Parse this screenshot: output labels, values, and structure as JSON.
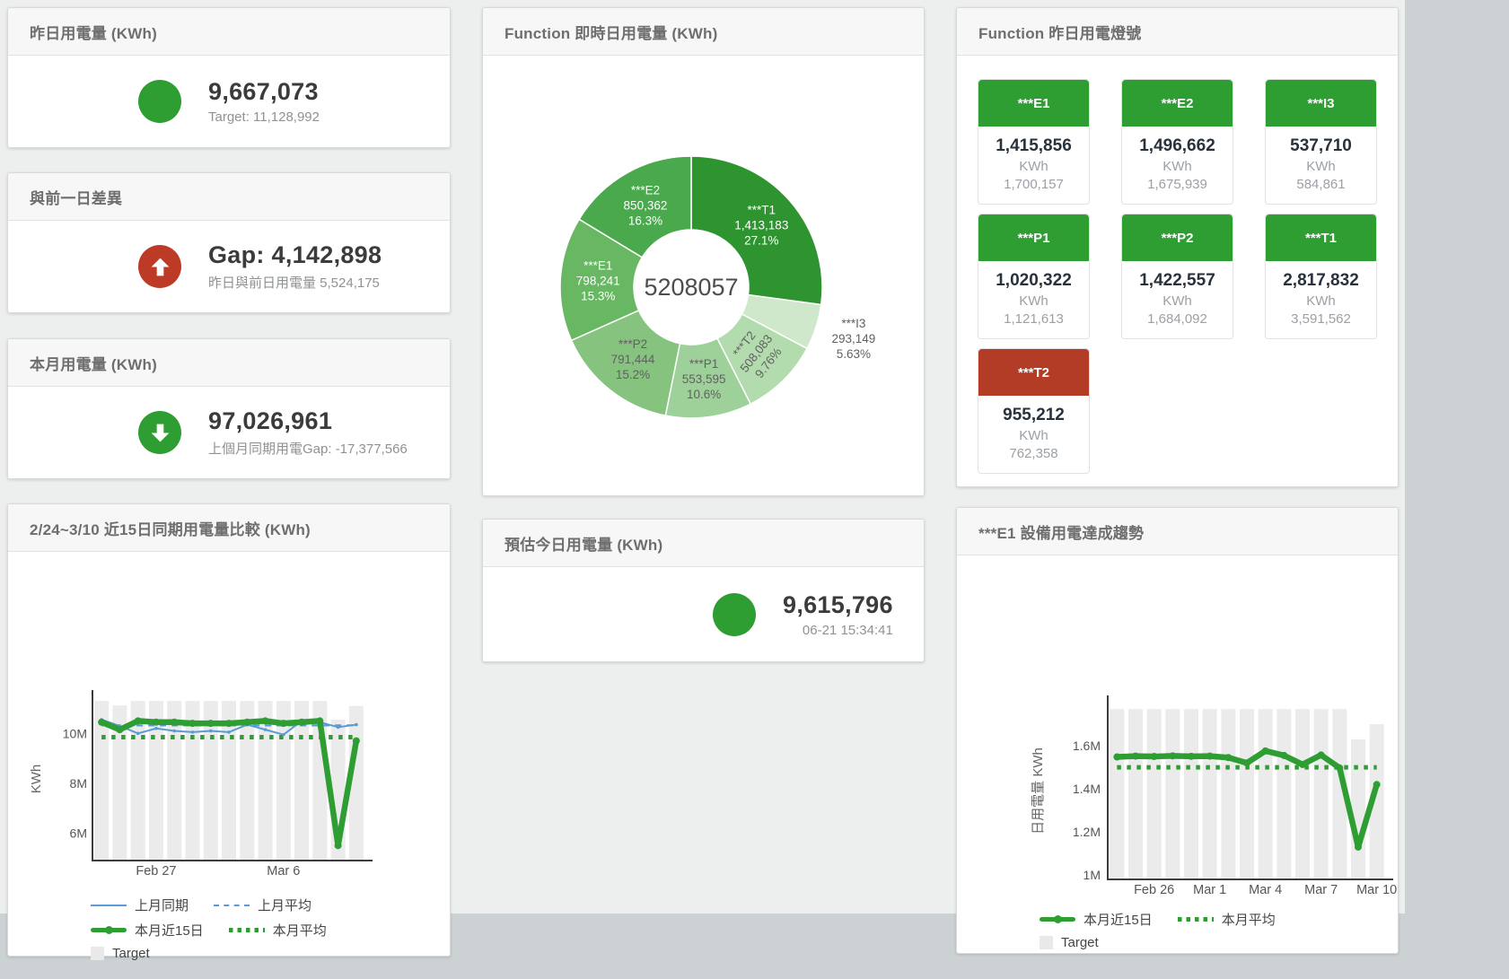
{
  "panels": {
    "yesterday": {
      "title": "昨日用電量 (KWh)",
      "value": "9,667,073",
      "subtitle": "Target: 11,128,992",
      "status_color": "#2e9d32",
      "arrow": "none"
    },
    "day_gap": {
      "title": "與前一日差異",
      "value": "Gap: 4,142,898",
      "subtitle": "昨日與前日用電量 5,524,175",
      "status_color": "#bd3b26",
      "arrow": "up"
    },
    "month": {
      "title": "本月用電量 (KWh)",
      "value": "97,026,961",
      "subtitle": "上個月同期用電Gap: -17,377,566",
      "status_color": "#2e9d32",
      "arrow": "down"
    },
    "realtime": {
      "title": "Function 即時日用電量 (KWh)"
    },
    "estimate": {
      "title": "預估今日用電量 (KWh)",
      "value": "9,615,796",
      "subtitle": "06-21 15:34:41",
      "status_color": "#2e9d32"
    },
    "lights": {
      "title": "Function 昨日用電燈號",
      "unit": "KWh",
      "tiles": [
        {
          "name": "***E1",
          "value": "1,415,856",
          "prev": "1,700,157",
          "header_color": "#2e9d32"
        },
        {
          "name": "***E2",
          "value": "1,496,662",
          "prev": "1,675,939",
          "header_color": "#2e9d32"
        },
        {
          "name": "***I3",
          "value": "537,710",
          "prev": "584,861",
          "header_color": "#2e9d32"
        },
        {
          "name": "***P1",
          "value": "1,020,322",
          "prev": "1,121,613",
          "header_color": "#2e9d32"
        },
        {
          "name": "***P2",
          "value": "1,422,557",
          "prev": "1,684,092",
          "header_color": "#2e9d32"
        },
        {
          "name": "***T1",
          "value": "2,817,832",
          "prev": "3,591,562",
          "header_color": "#2e9d32"
        },
        {
          "name": "***T2",
          "value": "955,212",
          "prev": "762,358",
          "header_color": "#b23c26"
        }
      ]
    },
    "compare": {
      "title": "2/24~3/10 近15日同期用電量比較 (KWh)"
    },
    "trend": {
      "title": "***E1 設備用電達成趨勢"
    }
  },
  "chart_data": [
    {
      "type": "pie",
      "title": "Function 即時日用電量 (KWh)",
      "center_total": "5208057",
      "slices": [
        {
          "name": "***T1",
          "value": 1413183,
          "pct": "27.1%",
          "color": "#2e9430",
          "label_color": "#ffffff"
        },
        {
          "name": "***I3",
          "value": 293149,
          "pct": "5.63%",
          "color": "#cfe7ca",
          "label_color": "#616161",
          "label_outside": true
        },
        {
          "name": "***T2",
          "value": 508083,
          "pct": "9.76%",
          "color": "#b3dcae",
          "label_color": "#616161",
          "label_rotate": -52
        },
        {
          "name": "***P1",
          "value": 553595,
          "pct": "10.6%",
          "color": "#9ed099",
          "label_color": "#616161"
        },
        {
          "name": "***P2",
          "value": 791444,
          "pct": "15.2%",
          "color": "#85c37f",
          "label_color": "#616161"
        },
        {
          "name": "***E1",
          "value": 798241,
          "pct": "15.3%",
          "color": "#67b763",
          "label_color": "#ffffff"
        },
        {
          "name": "***E2",
          "value": 850362,
          "pct": "16.3%",
          "color": "#4aa84d",
          "label_color": "#ffffff"
        }
      ]
    },
    {
      "type": "line",
      "title": "2/24~3/10 近15日同期用電量比較 (KWh)",
      "ylabel": "KWh",
      "ylim": [
        4.9,
        11.45
      ],
      "yticks": [
        {
          "value": 6,
          "label": "6M"
        },
        {
          "value": 8,
          "label": "8M"
        },
        {
          "value": 10,
          "label": "10M"
        }
      ],
      "x_count": 15,
      "xticks": [
        {
          "index": 3,
          "label": "Feb 27"
        },
        {
          "index": 10,
          "label": "Mar 6"
        }
      ],
      "target_name": "Target",
      "target_color": "#ebebeb",
      "target_bars": [
        11.3,
        11.12,
        11.3,
        11.3,
        11.3,
        11.3,
        11.3,
        11.3,
        11.3,
        11.3,
        11.3,
        11.3,
        11.3,
        10.55,
        11.1
      ],
      "series": [
        {
          "name": "上月同期",
          "style": "solid_thin",
          "color": "#5b9bd5",
          "values": [
            10.55,
            10.3,
            10.0,
            10.2,
            10.1,
            10.05,
            10.1,
            10.05,
            10.35,
            10.15,
            9.95,
            10.5,
            10.45,
            10.25,
            10.35
          ]
        },
        {
          "name": "上月平均",
          "style": "dashed",
          "color": "#5b9bd5",
          "const": 10.32
        },
        {
          "name": "本月近15日",
          "style": "solid_thick",
          "color": "#2e9d32",
          "values": [
            10.45,
            10.15,
            10.5,
            10.45,
            10.45,
            10.4,
            10.4,
            10.4,
            10.45,
            10.5,
            10.4,
            10.45,
            10.5,
            5.5,
            9.7
          ]
        },
        {
          "name": "本月平均",
          "style": "dotted",
          "color": "#2e9d32",
          "const": 9.85
        }
      ],
      "legend": [
        {
          "label": "上月同期",
          "swatch": "line",
          "color": "#5b9bd5"
        },
        {
          "label": "上月平均",
          "swatch": "dashed",
          "color": "#5b9bd5"
        },
        {
          "label": "本月近15日",
          "swatch": "thick",
          "color": "#2e9d32"
        },
        {
          "label": "本月平均",
          "swatch": "dotted",
          "color": "#2e9d32"
        },
        {
          "label": "Target",
          "swatch": "square",
          "color": "#e9e9e9"
        }
      ]
    },
    {
      "type": "line",
      "title": "***E1 設備用電達成趨勢",
      "ylabel": "日用電量 KWh",
      "ylim": [
        0.98,
        1.8
      ],
      "yticks": [
        {
          "value": 1,
          "label": "1M"
        },
        {
          "value": 1.2,
          "label": "1.2M"
        },
        {
          "value": 1.4,
          "label": "1.4M"
        },
        {
          "value": 1.6,
          "label": "1.6M"
        }
      ],
      "x_count": 15,
      "xticks": [
        {
          "index": 2,
          "label": "Feb 26"
        },
        {
          "index": 5,
          "label": "Mar 1"
        },
        {
          "index": 8,
          "label": "Mar 4"
        },
        {
          "index": 11,
          "label": "Mar 7"
        },
        {
          "index": 14,
          "label": "Mar 10"
        }
      ],
      "target_name": "Target",
      "target_color": "#ebebeb",
      "target_bars": [
        1.77,
        1.77,
        1.77,
        1.77,
        1.77,
        1.77,
        1.77,
        1.77,
        1.77,
        1.77,
        1.77,
        1.77,
        1.77,
        1.63,
        1.7
      ],
      "series": [
        {
          "name": "本月近15日",
          "style": "solid_thick",
          "color": "#2e9d32",
          "values": [
            1.548,
            1.552,
            1.55,
            1.553,
            1.551,
            1.552,
            1.545,
            1.52,
            1.576,
            1.555,
            1.513,
            1.557,
            1.497,
            1.13,
            1.42
          ]
        },
        {
          "name": "本月平均",
          "style": "dotted",
          "color": "#2e9d32",
          "const": 1.5
        }
      ],
      "legend": [
        {
          "label": "本月近15日",
          "swatch": "thick",
          "color": "#2e9d32"
        },
        {
          "label": "本月平均",
          "swatch": "dotted",
          "color": "#2e9d32"
        },
        {
          "label": "Target",
          "swatch": "square",
          "color": "#e9e9e9"
        }
      ]
    }
  ]
}
